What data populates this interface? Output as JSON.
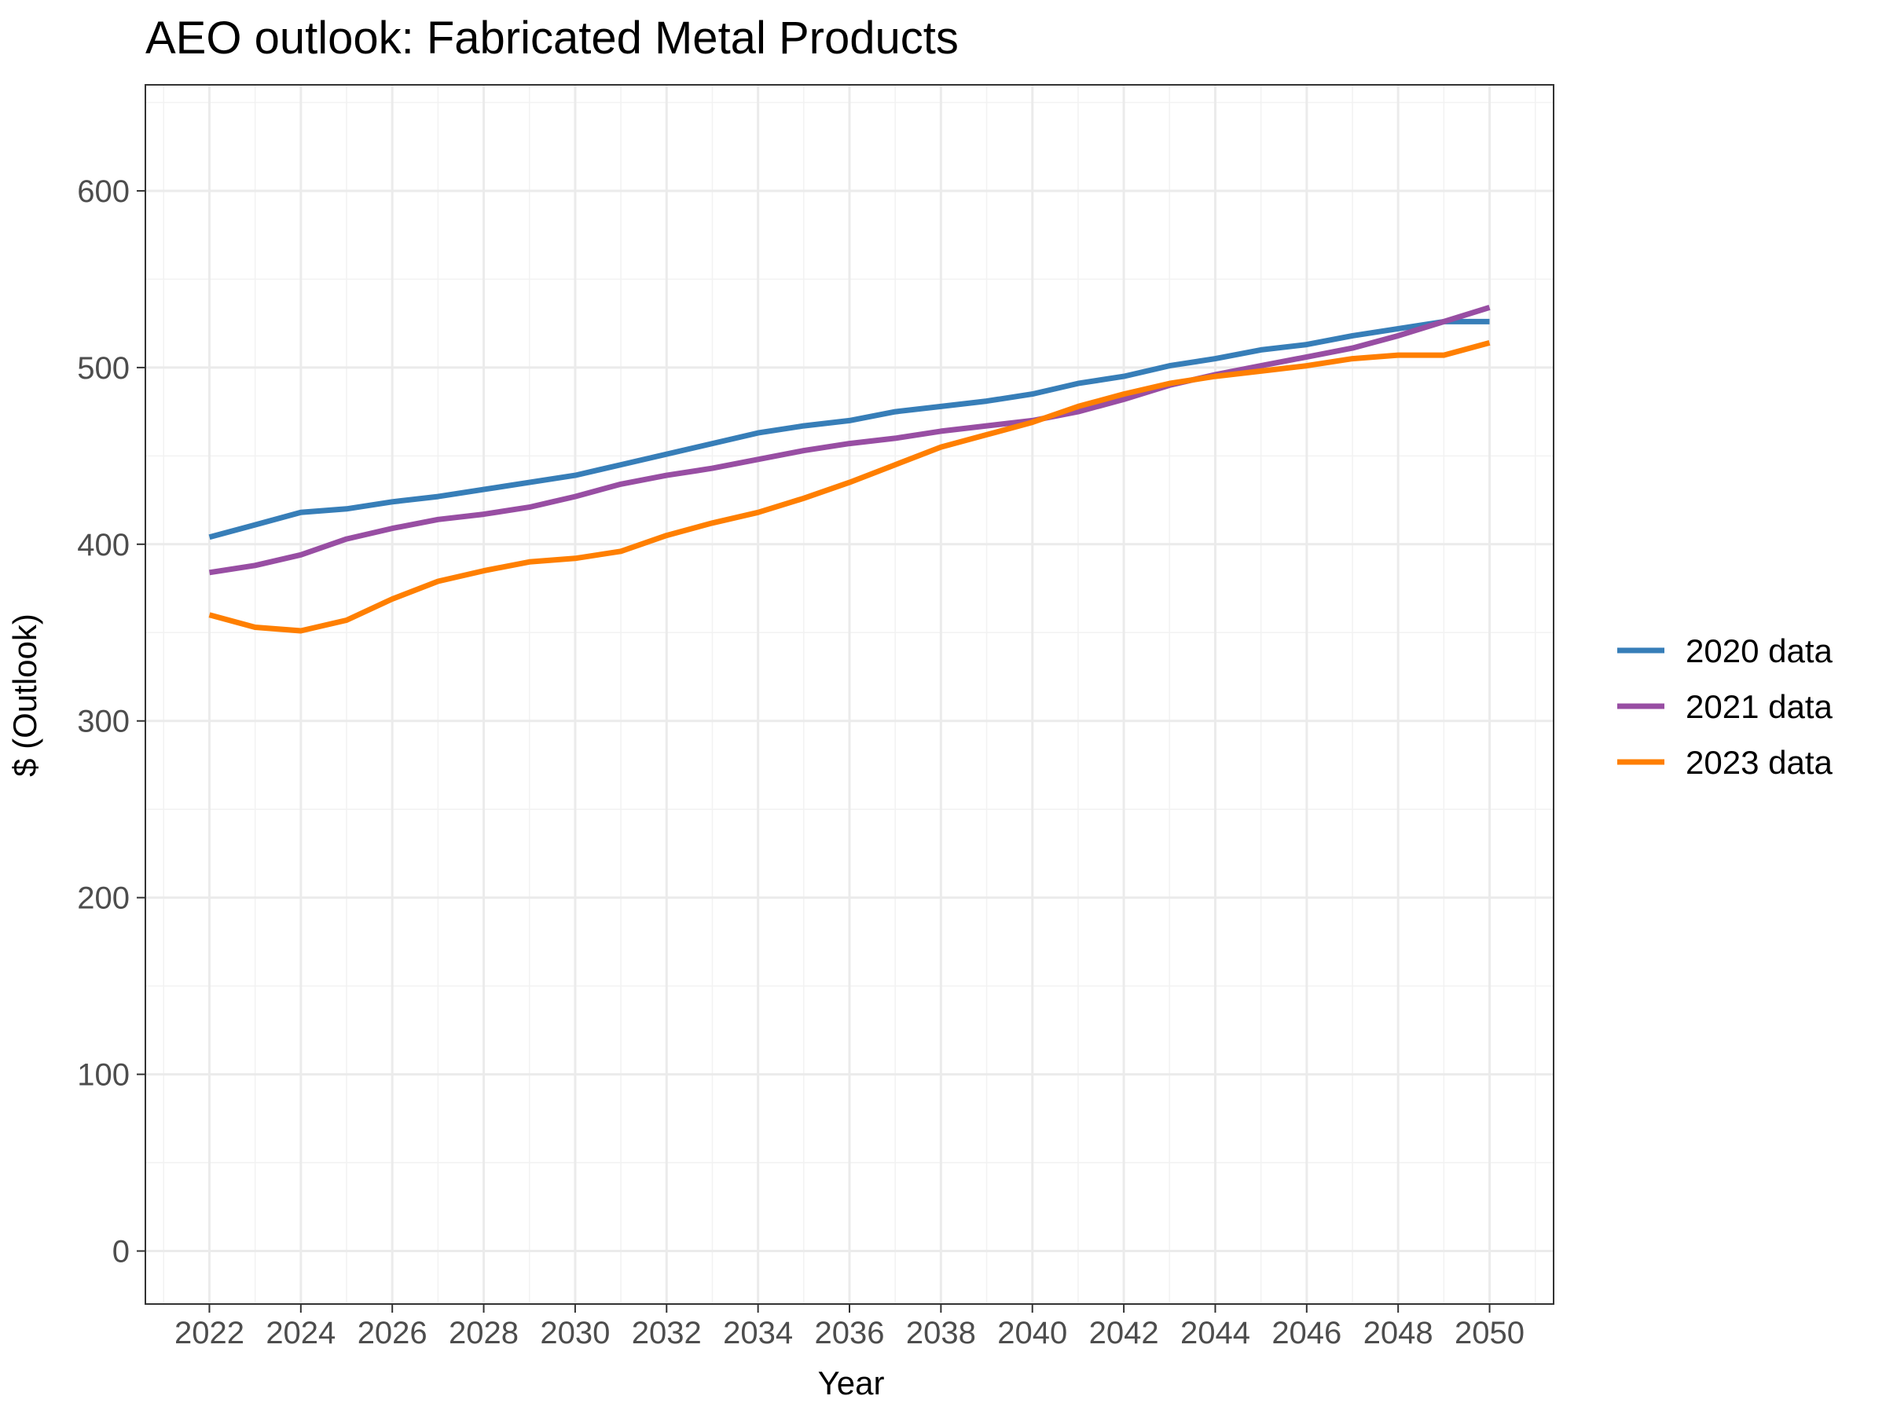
{
  "chart_data": {
    "type": "line",
    "title": "AEO outlook: Fabricated Metal Products",
    "xlabel": "Year",
    "ylabel": "$ (Outlook)",
    "xlim": [
      2020.6,
      2051.4
    ],
    "ylim": [
      -30,
      660
    ],
    "x_ticks": [
      2022,
      2024,
      2026,
      2028,
      2030,
      2032,
      2034,
      2036,
      2038,
      2040,
      2042,
      2044,
      2046,
      2048,
      2050
    ],
    "y_ticks": [
      0,
      100,
      200,
      300,
      400,
      500,
      600
    ],
    "grid": true,
    "legend_position": "right",
    "x": [
      2022,
      2023,
      2024,
      2025,
      2026,
      2027,
      2028,
      2029,
      2030,
      2031,
      2032,
      2033,
      2034,
      2035,
      2036,
      2037,
      2038,
      2039,
      2040,
      2041,
      2042,
      2043,
      2044,
      2045,
      2046,
      2047,
      2048,
      2049,
      2050
    ],
    "series": [
      {
        "name": "2020 data",
        "color": "#377eb8",
        "values": [
          404,
          411,
          418,
          420,
          424,
          427,
          431,
          435,
          439,
          445,
          451,
          457,
          463,
          467,
          470,
          475,
          478,
          481,
          485,
          491,
          495,
          501,
          505,
          510,
          513,
          518,
          522,
          526,
          526
        ]
      },
      {
        "name": "2021 data",
        "color": "#984ea3",
        "values": [
          384,
          388,
          394,
          403,
          409,
          414,
          417,
          421,
          427,
          434,
          439,
          443,
          448,
          453,
          457,
          460,
          464,
          467,
          470,
          475,
          482,
          490,
          496,
          501,
          506,
          511,
          518,
          526,
          534
        ]
      },
      {
        "name": "2023 data",
        "color": "#ff7f00",
        "values": [
          360,
          353,
          351,
          357,
          369,
          379,
          385,
          390,
          392,
          396,
          405,
          412,
          418,
          426,
          435,
          445,
          455,
          462,
          469,
          478,
          485,
          491,
          495,
          498,
          501,
          505,
          507,
          507,
          514
        ]
      }
    ]
  }
}
